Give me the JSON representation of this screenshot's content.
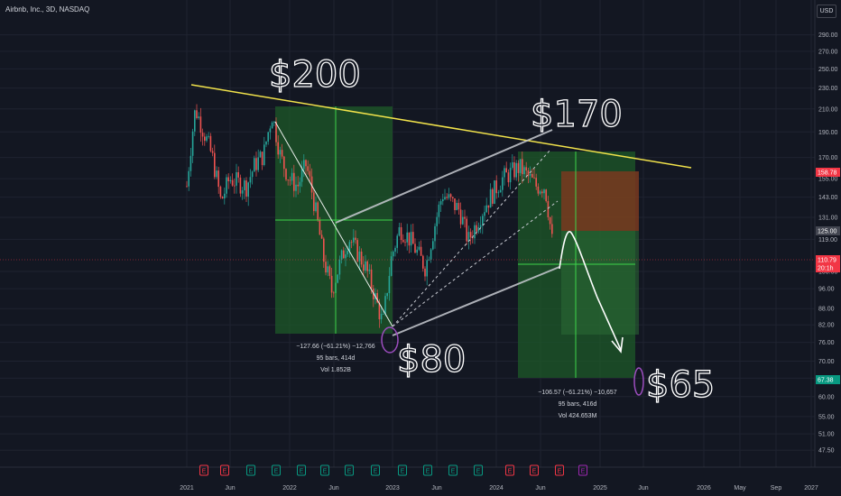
{
  "header": {
    "title": "Airbnb, Inc., 3D, NASDAQ",
    "currency": "USD"
  },
  "colors": {
    "bg": "#131722",
    "up": "#26a69a",
    "down": "#ef5350",
    "grid": "#1f2330",
    "trendline": "#f2e34b",
    "channel": "#c8cbd2",
    "greenbox": "#1e5a28",
    "redbox": "#7a3a20"
  },
  "annotations": {
    "top_left": "$200",
    "top_right": "$170",
    "low_left": "$80",
    "low_right": "$65",
    "stat_left": [
      "−127.66 (−61.21%) −12,766",
      "95 bars, 414d",
      "Vol 1.852B"
    ],
    "stat_right": [
      "−106.57 (−61.21%) −10,657",
      "95 bars, 416d",
      "Vol 424.653M"
    ]
  },
  "price_tags": [
    {
      "value": "158.78",
      "color": "#f23645"
    },
    {
      "value": "125.00",
      "color": "#434651"
    },
    {
      "value": "110.79",
      "color": "#f23645"
    },
    {
      "value": "20:1h",
      "color": "#f23645"
    },
    {
      "value": "67.38",
      "color": "#089981"
    }
  ],
  "chart_data": {
    "type": "candlestick",
    "title": "Airbnb, Inc., 3D, NASDAQ",
    "y_scale": "log",
    "y_ticks": [
      290,
      270,
      250,
      230,
      210,
      190,
      170,
      155,
      143,
      131,
      119,
      103.5,
      96,
      88,
      82,
      76,
      70,
      65,
      60,
      55,
      51,
      47.5
    ],
    "x_ticks": [
      "2021",
      "Jun",
      "2022",
      "Jun",
      "2023",
      "Jun",
      "2024",
      "Jun",
      "2025",
      "Jun",
      "2026",
      "May",
      "Sep",
      "2027"
    ],
    "earnings_markers": [
      "E",
      "E",
      "E",
      "E",
      "E",
      "E",
      "E",
      "E",
      "E",
      "E",
      "E",
      "E",
      "E",
      "E",
      "E",
      "E"
    ],
    "ylim": [
      45,
      300
    ],
    "price_path": [
      {
        "date": "2021-01",
        "price": 150
      },
      {
        "date": "2021-02",
        "price": 210
      },
      {
        "date": "2021-03",
        "price": 190
      },
      {
        "date": "2021-04",
        "price": 170
      },
      {
        "date": "2021-05",
        "price": 140
      },
      {
        "date": "2021-06",
        "price": 155
      },
      {
        "date": "2021-08",
        "price": 150
      },
      {
        "date": "2021-09",
        "price": 165
      },
      {
        "date": "2021-10",
        "price": 172
      },
      {
        "date": "2021-11",
        "price": 205
      },
      {
        "date": "2021-12",
        "price": 170
      },
      {
        "date": "2022-01",
        "price": 155
      },
      {
        "date": "2022-02",
        "price": 150
      },
      {
        "date": "2022-03",
        "price": 165
      },
      {
        "date": "2022-05",
        "price": 110
      },
      {
        "date": "2022-06",
        "price": 95
      },
      {
        "date": "2022-08",
        "price": 120
      },
      {
        "date": "2022-10",
        "price": 105
      },
      {
        "date": "2022-12",
        "price": 82
      },
      {
        "date": "2023-01",
        "price": 110
      },
      {
        "date": "2023-02",
        "price": 125
      },
      {
        "date": "2023-03",
        "price": 120
      },
      {
        "date": "2023-05",
        "price": 105
      },
      {
        "date": "2023-07",
        "price": 145
      },
      {
        "date": "2023-09",
        "price": 135
      },
      {
        "date": "2023-10",
        "price": 118
      },
      {
        "date": "2023-12",
        "price": 138
      },
      {
        "date": "2024-02",
        "price": 155
      },
      {
        "date": "2024-04",
        "price": 163
      },
      {
        "date": "2024-06",
        "price": 150
      },
      {
        "date": "2024-07",
        "price": 150
      },
      {
        "date": "2024-08",
        "price": 112
      }
    ]
  }
}
